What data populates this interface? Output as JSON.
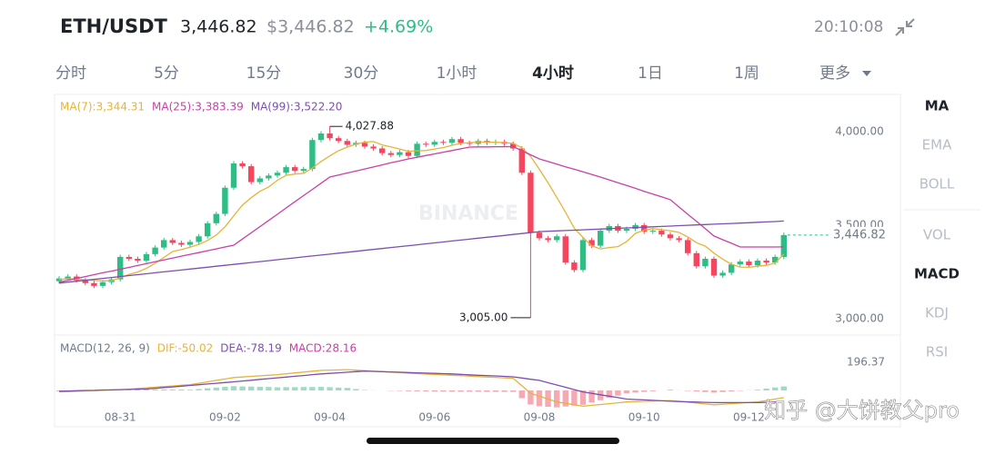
{
  "header": {
    "pair": "ETH/USDT",
    "price": "3,446.82",
    "price_usd": "$3,446.82",
    "change": "+4.69%",
    "time": "20:10:08"
  },
  "tabs": [
    "分时",
    "5分",
    "15分",
    "30分",
    "1小时",
    "4小时",
    "1日",
    "1周",
    "更多"
  ],
  "active_tab": "4小时",
  "indicators": [
    "MA",
    "EMA",
    "BOLL",
    "VOL",
    "MACD",
    "KDJ",
    "RSI"
  ],
  "active_indicators": [
    "MA",
    "MACD"
  ],
  "watermarks": [
    "BINANCE",
    "知乎 @大饼教父pro"
  ],
  "chart_data": [
    {
      "type": "candlestick",
      "categories": [
        null,
        null,
        null,
        null,
        null,
        null,
        null,
        "08-31",
        null,
        null,
        null,
        null,
        null,
        null,
        null,
        null,
        null,
        null,
        null,
        "09-02",
        null,
        null,
        null,
        null,
        null,
        null,
        null,
        null,
        null,
        null,
        null,
        "09-04",
        null,
        null,
        null,
        null,
        null,
        null,
        null,
        null,
        null,
        null,
        null,
        "09-06",
        null,
        null,
        null,
        null,
        null,
        null,
        null,
        null,
        null,
        null,
        null,
        "09-08",
        null,
        null,
        null,
        null,
        null,
        null,
        null,
        null,
        null,
        null,
        null,
        "09-10",
        null,
        null,
        null,
        null,
        null,
        null,
        null,
        null,
        null,
        null,
        null,
        "09-12",
        null,
        null,
        null,
        null
      ],
      "open": [
        3200,
        3215,
        3225,
        3205,
        3190,
        3175,
        3195,
        3210,
        3330,
        3320,
        3310,
        3345,
        3380,
        3420,
        3405,
        3395,
        3410,
        3440,
        3510,
        3560,
        3700,
        3830,
        3815,
        3730,
        3750,
        3765,
        3780,
        3810,
        3790,
        3800,
        3955,
        3990,
        3965,
        3950,
        3930,
        3940,
        3920,
        3910,
        3885,
        3875,
        3890,
        3870,
        3935,
        3930,
        3945,
        3940,
        3960,
        3940,
        3935,
        3950,
        3940,
        3945,
        3935,
        3910,
        3780,
        3460,
        3430,
        3420,
        3440,
        3300,
        3260,
        3420,
        3390,
        3470,
        3495,
        3470,
        3480,
        3500,
        3465,
        3470,
        3450,
        3430,
        3420,
        3350,
        3280,
        3320,
        3230,
        3245,
        3290,
        3305,
        3285,
        3310,
        3300,
        3330
      ],
      "high": [
        3227,
        3237,
        3237,
        3217,
        3202,
        3207,
        3222,
        3342,
        3342,
        3332,
        3357,
        3392,
        3432,
        3432,
        3417,
        3422,
        3452,
        3522,
        3572,
        3712,
        3842,
        3842,
        3827,
        3762,
        3777,
        3792,
        3822,
        3822,
        3812,
        3967,
        4002,
        4027.88,
        3977,
        3962,
        3952,
        3952,
        3932,
        3922,
        3897,
        3902,
        3902,
        3947,
        3947,
        3957,
        3957,
        3972,
        3972,
        3952,
        3962,
        3962,
        3957,
        3957,
        3947,
        3922,
        3792,
        3472,
        3442,
        3452,
        3452,
        3312,
        3432,
        3432,
        3482,
        3507,
        3507,
        3492,
        3512,
        3512,
        3482,
        3482,
        3462,
        3442,
        3432,
        3362,
        3332,
        3332,
        3257,
        3302,
        3317,
        3317,
        3322,
        3322,
        3342,
        3460
      ],
      "low": [
        3188,
        3203,
        3193,
        3178,
        3163,
        3163,
        3183,
        3198,
        3308,
        3298,
        3298,
        3333,
        3368,
        3393,
        3383,
        3383,
        3398,
        3428,
        3498,
        3548,
        3688,
        3803,
        3718,
        3718,
        3738,
        3753,
        3768,
        3778,
        3778,
        3788,
        3943,
        3953,
        3938,
        3918,
        3918,
        3908,
        3898,
        3873,
        3863,
        3863,
        3858,
        3858,
        3918,
        3918,
        3928,
        3928,
        3928,
        3923,
        3923,
        3928,
        3928,
        3923,
        3898,
        3768,
        3005,
        3418,
        3408,
        3408,
        3288,
        3248,
        3248,
        3378,
        3378,
        3458,
        3458,
        3458,
        3468,
        3453,
        3453,
        3438,
        3418,
        3408,
        3338,
        3268,
        3268,
        3218,
        3218,
        3233,
        3278,
        3273,
        3273,
        3288,
        3288,
        3318
      ],
      "close": [
        3215,
        3225,
        3205,
        3190,
        3175,
        3195,
        3210,
        3330,
        3320,
        3310,
        3345,
        3380,
        3420,
        3405,
        3395,
        3410,
        3440,
        3510,
        3560,
        3700,
        3830,
        3815,
        3730,
        3750,
        3765,
        3780,
        3810,
        3790,
        3800,
        3955,
        3990,
        3965,
        3950,
        3930,
        3940,
        3920,
        3910,
        3885,
        3875,
        3890,
        3870,
        3935,
        3930,
        3945,
        3940,
        3960,
        3940,
        3935,
        3950,
        3940,
        3945,
        3935,
        3910,
        3780,
        3460,
        3430,
        3420,
        3440,
        3300,
        3260,
        3420,
        3390,
        3470,
        3495,
        3470,
        3480,
        3500,
        3465,
        3470,
        3450,
        3430,
        3420,
        3350,
        3280,
        3320,
        3230,
        3245,
        3290,
        3305,
        3285,
        3310,
        3300,
        3330,
        3446.82
      ],
      "up_color": "#2ebd85",
      "down_color": "#f6465d",
      "series": [
        {
          "name": "MA(7):3,344.31",
          "color": "#e8b339",
          "values": [
            3210,
            3212,
            3212,
            3208,
            3204,
            3202,
            3202,
            3219,
            3236,
            3249,
            3269,
            3296,
            3327,
            3359,
            3369,
            3382,
            3396,
            3418,
            3447,
            3491,
            3550,
            3608,
            3647,
            3681,
            3704,
            3740,
            3766,
            3773,
            3777,
            3805,
            3840,
            3870,
            3898,
            3917,
            3933,
            3944,
            3947,
            3929,
            3918,
            3907,
            3895,
            3898,
            3899,
            3907,
            3915,
            3927,
            3937,
            3941,
            3944,
            3944,
            3943,
            3941,
            3937,
            3914,
            3867,
            3799,
            3726,
            3648,
            3569,
            3483,
            3434,
            3389,
            3373,
            3380,
            3385,
            3412,
            3456,
            3473,
            3481,
            3476,
            3470,
            3461,
            3437,
            3406,
            3388,
            3350,
            3318,
            3291,
            3276,
            3275,
            3280,
            3285,
            3297,
            3344.31
          ]
        },
        {
          "name": "MA(25):3,383.39",
          "color": "#c940a6",
          "values": [
            3195,
            3205,
            3215,
            3225,
            3235,
            3245,
            3254,
            3264,
            3274,
            3284,
            3294,
            3304,
            3314,
            3324,
            3334,
            3344,
            3353,
            3363,
            3373,
            3383,
            3393,
            3426,
            3459,
            3492,
            3525,
            3558,
            3592,
            3625,
            3658,
            3691,
            3724,
            3757,
            3768,
            3779,
            3789,
            3800,
            3811,
            3822,
            3833,
            3843,
            3854,
            3863,
            3872,
            3881,
            3890,
            3899,
            3908,
            3917,
            3918,
            3918,
            3919,
            3919,
            3920,
            3898,
            3876,
            3854,
            3840,
            3826,
            3812,
            3799,
            3785,
            3771,
            3757,
            3742,
            3727,
            3712,
            3697,
            3681,
            3666,
            3651,
            3636,
            3597,
            3558,
            3520,
            3481,
            3442,
            3422,
            3403,
            3383,
            3383,
            3383,
            3383,
            3383,
            3383.39
          ]
        },
        {
          "name": "MA(99):3,522.20",
          "color": "#7c4fb0",
          "values": [
            3190,
            3195,
            3200,
            3205,
            3210,
            3215,
            3220,
            3225,
            3230,
            3235,
            3240,
            3245,
            3250,
            3255,
            3260,
            3265,
            3270,
            3275,
            3280,
            3285,
            3290,
            3295,
            3300,
            3305,
            3310,
            3315,
            3320,
            3325,
            3330,
            3335,
            3340,
            3345,
            3350,
            3355,
            3360,
            3365,
            3370,
            3375,
            3380,
            3385,
            3390,
            3395,
            3400,
            3405,
            3410,
            3415,
            3420,
            3425,
            3430,
            3435,
            3440,
            3445,
            3450,
            3455,
            3460,
            3465,
            3467,
            3469,
            3471,
            3473,
            3475,
            3477,
            3479,
            3481,
            3483,
            3485,
            3487,
            3489,
            3491,
            3493,
            3495,
            3497,
            3499,
            3501,
            3503,
            3505,
            3507,
            3509,
            3511,
            3513,
            3515,
            3517,
            3519,
            3522.2
          ]
        }
      ],
      "ylim": [
        2917,
        4194
      ],
      "yticks": [
        {
          "value": 3000,
          "label": "3,000.00"
        },
        {
          "value": 3500,
          "label": "3,500.00"
        },
        {
          "value": 4000,
          "label": "4,000.00"
        }
      ],
      "annotations": [
        {
          "value": 4027.88,
          "label": "4,027.88"
        },
        {
          "value": 3005,
          "label": "3,005.00"
        }
      ],
      "last_price": {
        "value": 3446.82,
        "label": "3,446.82"
      }
    },
    {
      "type": "macd",
      "title": "MACD(12, 26, 9)",
      "series": [
        {
          "name": "DIF:-50.02",
          "color": "#e8b339",
          "values": [
            -10,
            -8,
            -6,
            -4,
            -1,
            1,
            3,
            5,
            9,
            14,
            18,
            23,
            27,
            31,
            36,
            40,
            50,
            60,
            70,
            80,
            90,
            94,
            98,
            102,
            106,
            110,
            116,
            122,
            128,
            134,
            140,
            142,
            143,
            145,
            141,
            138,
            134,
            131,
            127,
            124,
            120,
            117,
            114,
            111,
            109,
            106,
            103,
            100,
            97,
            94,
            91,
            88,
            85,
            33,
            -20,
            -40,
            -60,
            -80,
            -90,
            -100,
            -110,
            -104,
            -98,
            -92,
            -86,
            -80,
            -78,
            -76,
            -74,
            -72,
            -70,
            -76,
            -82,
            -88,
            -94,
            -100,
            -96,
            -92,
            -88,
            -84,
            -80,
            -70,
            -60,
            -50.02
          ]
        },
        {
          "name": "DEA:-78.19",
          "color": "#7c4fb0",
          "values": [
            -5,
            -4,
            -2,
            0,
            1,
            3,
            4,
            6,
            7,
            9,
            10,
            15,
            20,
            25,
            30,
            35,
            40,
            45,
            50,
            55,
            60,
            66,
            71,
            77,
            82,
            88,
            93,
            99,
            104,
            110,
            115,
            119,
            123,
            127,
            131,
            135,
            133,
            131,
            129,
            127,
            125,
            123,
            121,
            119,
            117,
            115,
            112,
            109,
            106,
            104,
            101,
            98,
            95,
            87,
            78,
            70,
            54,
            38,
            22,
            6,
            -10,
            -20,
            -30,
            -40,
            -50,
            -60,
            -63,
            -66,
            -69,
            -72,
            -75,
            -77,
            -79,
            -81,
            -83,
            -85,
            -85,
            -85,
            -85,
            -85,
            -85,
            -83,
            -81,
            -78.19
          ]
        },
        {
          "name": "MACD:28.16",
          "color": "#c940a6",
          "values": [
            -5,
            -4,
            -4,
            -4,
            -2,
            -2,
            -1,
            -1,
            2,
            5,
            8,
            8,
            7,
            6,
            6,
            5,
            10,
            15,
            20,
            25,
            30,
            28,
            27,
            25,
            24,
            22,
            23,
            23,
            24,
            24,
            25,
            23,
            20,
            18,
            10,
            3,
            1,
            0,
            -2,
            -3,
            -5,
            -6,
            -7,
            -8,
            -8,
            -9,
            -9,
            -9,
            -9,
            -10,
            -10,
            -10,
            -10,
            -54,
            -98,
            -110,
            -114,
            -118,
            -112,
            -106,
            -100,
            -84,
            -68,
            -52,
            -36,
            -20,
            -15,
            -10,
            -5,
            0,
            5,
            1,
            -3,
            -7,
            -11,
            -15,
            -11,
            -7,
            -3,
            1,
            5,
            13,
            21,
            28.16
          ]
        }
      ],
      "up_color": "#9fdcc1",
      "down_color": "#f5a9b3",
      "ylim": [
        -253,
        367
      ],
      "yticks": [
        196.37
      ]
    }
  ]
}
